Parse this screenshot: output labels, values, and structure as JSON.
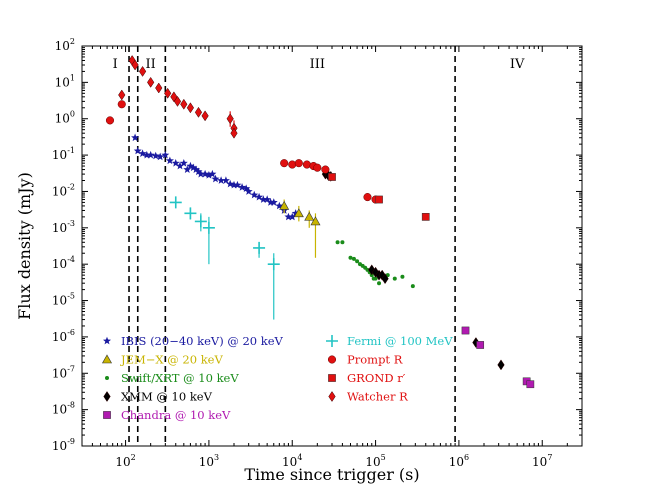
{
  "chart_data": {
    "type": "scatter",
    "xscale": "log",
    "yscale": "log",
    "xlim": [
      30,
      30000000
    ],
    "ylim": [
      1e-09,
      100
    ],
    "xlabel": "Time since trigger (s)",
    "ylabel": "Flux density (mJy)",
    "x_ticks": [
      {
        "base": "10",
        "exp": "2",
        "v": 100
      },
      {
        "base": "10",
        "exp": "3",
        "v": 1000
      },
      {
        "base": "10",
        "exp": "4",
        "v": 10000
      },
      {
        "base": "10",
        "exp": "5",
        "v": 100000
      },
      {
        "base": "10",
        "exp": "6",
        "v": 1000000
      },
      {
        "base": "10",
        "exp": "7",
        "v": 10000000
      }
    ],
    "y_ticks": [
      {
        "base": "10",
        "exp": "2",
        "v": 100
      },
      {
        "base": "10",
        "exp": "1",
        "v": 10
      },
      {
        "base": "10",
        "exp": "0",
        "v": 1
      },
      {
        "base": "10",
        "exp": "-1",
        "v": 0.1
      },
      {
        "base": "10",
        "exp": "-2",
        "v": 0.01
      },
      {
        "base": "10",
        "exp": "-3",
        "v": 0.001
      },
      {
        "base": "10",
        "exp": "-4",
        "v": 0.0001
      },
      {
        "base": "10",
        "exp": "-5",
        "v": 1e-05
      },
      {
        "base": "10",
        "exp": "-6",
        "v": 1e-06
      },
      {
        "base": "10",
        "exp": "-7",
        "v": 1e-07
      },
      {
        "base": "10",
        "exp": "-8",
        "v": 1e-08
      },
      {
        "base": "10",
        "exp": "-9",
        "v": 1e-09
      }
    ],
    "phase_boundaries": [
      110,
      140,
      300,
      900000
    ],
    "phase_labels": [
      {
        "label": "I",
        "x": 75
      },
      {
        "label": "II",
        "x": 200
      },
      {
        "label": "III",
        "x": 20000
      },
      {
        "label": "IV",
        "x": 5000000
      }
    ],
    "series": [
      {
        "name": "IBIS (20−40 keV) @ 20 keV",
        "color": "#1a1aa0",
        "marker": "star",
        "points": [
          [
            130,
            0.3
          ],
          [
            140,
            0.13
          ],
          [
            160,
            0.11
          ],
          [
            180,
            0.1
          ],
          [
            200,
            0.1
          ],
          [
            230,
            0.095
          ],
          [
            260,
            0.09
          ],
          [
            300,
            0.1
          ],
          [
            340,
            0.07
          ],
          [
            400,
            0.06
          ],
          [
            450,
            0.05
          ],
          [
            500,
            0.06
          ],
          [
            550,
            0.04
          ],
          [
            600,
            0.05
          ],
          [
            650,
            0.045
          ],
          [
            700,
            0.04
          ],
          [
            750,
            0.035
          ],
          [
            800,
            0.03
          ],
          [
            900,
            0.03
          ],
          [
            1000,
            0.028
          ],
          [
            1100,
            0.03
          ],
          [
            1200,
            0.022
          ],
          [
            1400,
            0.02
          ],
          [
            1600,
            0.02
          ],
          [
            1800,
            0.016
          ],
          [
            2000,
            0.015
          ],
          [
            2200,
            0.015
          ],
          [
            2500,
            0.013
          ],
          [
            2800,
            0.012
          ],
          [
            3000,
            0.01
          ],
          [
            3500,
            0.008
          ],
          [
            4000,
            0.007
          ],
          [
            4500,
            0.006
          ],
          [
            5000,
            0.006
          ],
          [
            5500,
            0.005
          ],
          [
            6000,
            0.005
          ],
          [
            7000,
            0.004
          ],
          [
            8000,
            0.003
          ],
          [
            9000,
            0.002
          ],
          [
            10000,
            0.002
          ],
          [
            11000,
            0.0025
          ]
        ]
      },
      {
        "name": "JEM−X @ 20 keV",
        "color": "#c8b400",
        "marker": "triangle",
        "points": [
          [
            8000,
            0.004
          ],
          [
            12000,
            0.0025
          ],
          [
            16000,
            0.002
          ],
          [
            19000,
            0.0015
          ]
        ],
        "errors": [
          [
            8000,
            0.0025,
            0.006
          ],
          [
            12000,
            0.0015,
            0.004
          ],
          [
            16000,
            0.001,
            0.003
          ],
          [
            19000,
            0.00015,
            0.0025
          ]
        ]
      },
      {
        "name": "Swift/XRT @ 10 keV",
        "color": "#1a8c1a",
        "marker": "dot",
        "points": [
          [
            35000,
            0.0004
          ],
          [
            40000,
            0.0004
          ],
          [
            50000,
            0.00015
          ],
          [
            55000,
            0.00014
          ],
          [
            60000,
            0.00012
          ],
          [
            65000,
            0.0001
          ],
          [
            70000,
            9e-05
          ],
          [
            75000,
            8e-05
          ],
          [
            80000,
            7e-05
          ],
          [
            85000,
            6e-05
          ],
          [
            90000,
            5e-05
          ],
          [
            95000,
            4e-05
          ],
          [
            100000,
            4e-05
          ],
          [
            110000,
            3e-05
          ],
          [
            140000,
            5e-05
          ],
          [
            170000,
            4e-05
          ],
          [
            210000,
            4.5e-05
          ],
          [
            280000,
            2.5e-05
          ]
        ]
      },
      {
        "name": "XMM @ 10 keV",
        "color": "#000000",
        "marker": "diamond",
        "points": [
          [
            25000,
            0.03
          ],
          [
            27000,
            0.028
          ],
          [
            29000,
            0.026
          ],
          [
            90000,
            7e-05
          ],
          [
            100000,
            6e-05
          ],
          [
            110000,
            5e-05
          ],
          [
            120000,
            5e-05
          ],
          [
            130000,
            4e-05
          ],
          [
            1600000,
            7e-07
          ],
          [
            3200000,
            1.7e-07
          ]
        ]
      },
      {
        "name": "Chandra @ 10 keV",
        "color": "#b01ab0",
        "marker": "square",
        "points": [
          [
            1200000,
            1.5e-06
          ],
          [
            1800000,
            6e-07
          ],
          [
            6500000,
            6e-08
          ],
          [
            7200000,
            5e-08
          ]
        ]
      },
      {
        "name": "Fermi @ 100 MeV",
        "color": "#22c4c4",
        "marker": "plus",
        "points": [
          [
            400,
            0.005
          ],
          [
            600,
            0.0025
          ],
          [
            800,
            0.0015
          ],
          [
            1000,
            0.001
          ],
          [
            4000,
            0.00028
          ],
          [
            6000,
            0.0001
          ]
        ],
        "errors": [
          [
            400,
            0.004,
            0.006
          ],
          [
            600,
            0.0017,
            0.0035
          ],
          [
            800,
            0.0008,
            0.0025
          ],
          [
            1000,
            0.0001,
            0.002
          ],
          [
            4000,
            0.00015,
            0.0004
          ],
          [
            6000,
            3e-06,
            0.0002
          ]
        ]
      },
      {
        "name": "Prompt R",
        "color": "#e01010",
        "marker": "circle",
        "points": [
          [
            65,
            0.9
          ],
          [
            90,
            2.5
          ],
          [
            8000,
            0.06
          ],
          [
            10000,
            0.055
          ],
          [
            12000,
            0.06
          ],
          [
            15000,
            0.055
          ],
          [
            18000,
            0.05
          ],
          [
            20000,
            0.045
          ],
          [
            25000,
            0.04
          ],
          [
            80000,
            0.007
          ],
          [
            100000,
            0.006
          ]
        ]
      },
      {
        "name": "GROND r′",
        "color": "#e01010",
        "marker": "square",
        "points": [
          [
            30000,
            0.025
          ],
          [
            110000,
            0.006
          ],
          [
            400000,
            0.002
          ]
        ]
      },
      {
        "name": "Watcher R",
        "color": "#e01010",
        "marker": "diamond",
        "points": [
          [
            90,
            4.5
          ],
          [
            120,
            40
          ],
          [
            130,
            30
          ],
          [
            160,
            20
          ],
          [
            200,
            10
          ],
          [
            250,
            7
          ],
          [
            320,
            5
          ],
          [
            380,
            4
          ],
          [
            420,
            3
          ],
          [
            500,
            2.5
          ],
          [
            600,
            2
          ],
          [
            750,
            1.5
          ],
          [
            900,
            1.2
          ],
          [
            1800,
            1.0
          ],
          [
            2000,
            0.55
          ],
          [
            2000,
            0.4
          ]
        ],
        "errors": [
          [
            1800,
            0.6,
            1.6
          ],
          [
            2000,
            0.3,
            0.9
          ]
        ]
      }
    ]
  }
}
